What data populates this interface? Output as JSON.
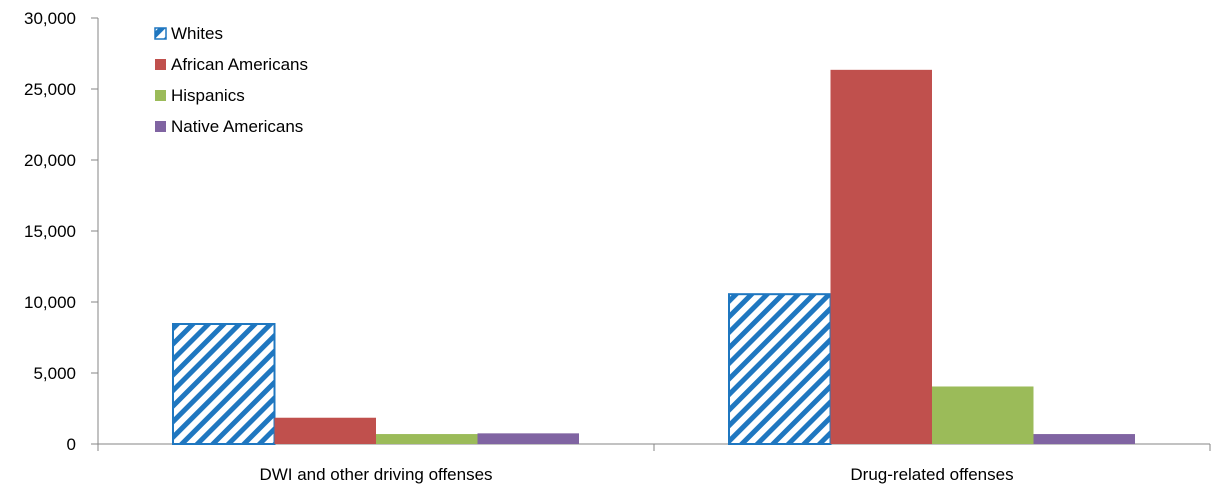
{
  "chart_data": {
    "type": "bar",
    "categories": [
      "DWI and other driving offenses",
      "Drug-related offenses"
    ],
    "series": [
      {
        "name": "Whites",
        "values": [
          8450,
          10550
        ],
        "color": "#1f77c0",
        "pattern": "diagonal-stripes"
      },
      {
        "name": "African Americans",
        "values": [
          1850,
          26350
        ],
        "color": "#c0504d"
      },
      {
        "name": "Hispanics",
        "values": [
          700,
          4050
        ],
        "color": "#9bbb59"
      },
      {
        "name": "Native Americans",
        "values": [
          750,
          700
        ],
        "color": "#8064a2"
      }
    ],
    "ylim": [
      0,
      30000
    ],
    "yticks": [
      "0",
      "5,000",
      "10,000",
      "15,000",
      "20,000",
      "25,000",
      "30,000"
    ],
    "ytick_values": [
      0,
      5000,
      10000,
      15000,
      20000,
      25000,
      30000
    ],
    "grid": false,
    "legend_position": "top-left"
  }
}
